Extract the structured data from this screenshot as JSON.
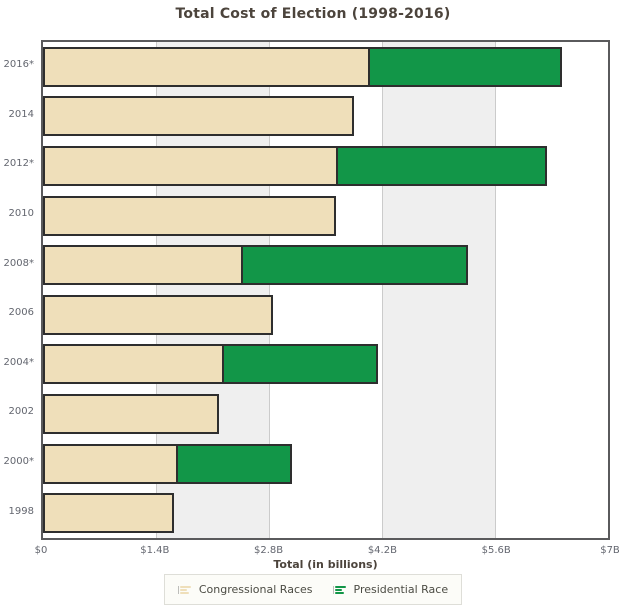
{
  "page": {
    "title": "Total Cost of Election (1998-2016)",
    "axis_title": "Total (in billions)"
  },
  "colors": {
    "congressional": "#efdfba",
    "presidential": "#129648",
    "bar_border": "#2e2e2e",
    "plot_border": "#5a5a5c",
    "band_gray": "#efefef",
    "gridline": "#cbcbcb",
    "title_text": "#4c443c",
    "axis_text": "#63666f"
  },
  "chart_data": {
    "type": "bar",
    "orientation": "horizontal",
    "stacked": true,
    "title": "Total Cost of Election (1998-2016)",
    "xlabel": "Total (in billions)",
    "ylabel": "",
    "xlim": [
      0,
      7
    ],
    "x_tick_values": [
      0,
      1.4,
      2.8,
      4.2,
      5.6,
      7
    ],
    "x_tick_labels": [
      "$0",
      "$1.4B",
      "$2.8B",
      "$4.2B",
      "$5.6B",
      "$7B"
    ],
    "categories": [
      "2016*",
      "2014",
      "2012*",
      "2010",
      "2008*",
      "2006",
      "2004*",
      "2002",
      "2000*",
      "1998"
    ],
    "series": [
      {
        "name": "Congressional Races",
        "color": "#efdfba",
        "values": [
          4.05,
          3.85,
          3.65,
          3.63,
          2.48,
          2.85,
          2.24,
          2.18,
          1.67,
          1.62
        ]
      },
      {
        "name": "Presidential Race",
        "color": "#129648",
        "values": [
          2.38,
          0,
          2.6,
          0,
          2.78,
          0,
          1.91,
          0,
          1.41,
          0
        ]
      }
    ],
    "totals": [
      6.43,
      3.85,
      6.25,
      3.63,
      5.26,
      2.85,
      4.15,
      2.18,
      3.08,
      1.62
    ],
    "grid": "vertical-bands-at-ticks",
    "legend_position": "bottom"
  },
  "legend": {
    "items": [
      {
        "label": "Congressional Races",
        "color": "#efdfba"
      },
      {
        "label": "Presidential Race",
        "color": "#129648"
      }
    ]
  }
}
